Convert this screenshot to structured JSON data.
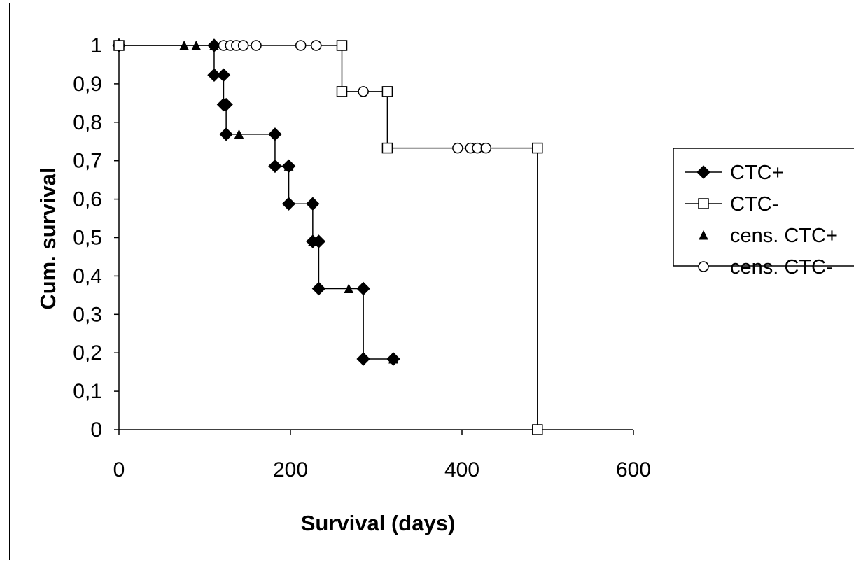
{
  "chart_data": {
    "type": "line",
    "title": "",
    "xlabel": "Survival (days)",
    "ylabel": "Cum. survival",
    "xlim": [
      0,
      600
    ],
    "ylim": [
      0,
      1
    ],
    "x_ticks": [
      0,
      200,
      400,
      600
    ],
    "x_tick_labels": [
      "0",
      "200",
      "400",
      "600"
    ],
    "y_ticks": [
      0,
      0.1,
      0.2,
      0.3,
      0.4,
      0.5,
      0.6,
      0.7,
      0.8,
      0.9,
      1
    ],
    "y_tick_labels": [
      "0",
      "0,1",
      "0,2",
      "0,3",
      "0,4",
      "0,5",
      "0,6",
      "0,7",
      "0,8",
      "0,9",
      "1"
    ],
    "grid": false,
    "legend_position": "right",
    "series": [
      {
        "name": "CTC+",
        "color": "#000000",
        "marker": "diamond",
        "step_points": [
          [
            0,
            1
          ],
          [
            111,
            1
          ],
          [
            111,
            0.923
          ],
          [
            122,
            0.923
          ],
          [
            122,
            0.846
          ],
          [
            125,
            0.846
          ],
          [
            125,
            0.769
          ],
          [
            182,
            0.769
          ],
          [
            182,
            0.686
          ],
          [
            198,
            0.686
          ],
          [
            198,
            0.588
          ],
          [
            226,
            0.588
          ],
          [
            226,
            0.49
          ],
          [
            233,
            0.49
          ],
          [
            233,
            0.367
          ],
          [
            285,
            0.367
          ],
          [
            285,
            0.184
          ],
          [
            320,
            0.184
          ]
        ],
        "event_points": [
          [
            0,
            1
          ],
          [
            111,
            1
          ],
          [
            111,
            0.923
          ],
          [
            122,
            0.923
          ],
          [
            122,
            0.846
          ],
          [
            125,
            0.846
          ],
          [
            125,
            0.769
          ],
          [
            182,
            0.769
          ],
          [
            182,
            0.686
          ],
          [
            198,
            0.686
          ],
          [
            198,
            0.588
          ],
          [
            226,
            0.588
          ],
          [
            226,
            0.49
          ],
          [
            233,
            0.49
          ],
          [
            233,
            0.367
          ],
          [
            285,
            0.367
          ],
          [
            285,
            0.184
          ],
          [
            320,
            0.184
          ]
        ]
      },
      {
        "name": "CTC-",
        "color": "#000000",
        "marker": "square",
        "step_points": [
          [
            0,
            1
          ],
          [
            260,
            1
          ],
          [
            260,
            0.88
          ],
          [
            313,
            0.88
          ],
          [
            313,
            0.733
          ],
          [
            488,
            0.733
          ],
          [
            488,
            0
          ]
        ],
        "event_points": [
          [
            0,
            1
          ],
          [
            260,
            1
          ],
          [
            260,
            0.88
          ],
          [
            313,
            0.88
          ],
          [
            313,
            0.733
          ],
          [
            488,
            0.733
          ],
          [
            488,
            0
          ]
        ]
      },
      {
        "name": "cens. CTC+",
        "color": "#000000",
        "marker": "triangle",
        "points": [
          [
            76,
            1
          ],
          [
            90,
            1
          ],
          [
            111,
            1
          ],
          [
            140,
            0.769
          ],
          [
            198,
            0.686
          ],
          [
            226,
            0.49
          ],
          [
            268,
            0.367
          ],
          [
            320,
            0.184
          ]
        ]
      },
      {
        "name": "cens. CTC-",
        "color": "#000000",
        "marker": "circle",
        "points": [
          [
            122,
            1
          ],
          [
            130,
            1
          ],
          [
            137,
            1
          ],
          [
            145,
            1
          ],
          [
            160,
            1
          ],
          [
            212,
            1
          ],
          [
            230,
            1
          ],
          [
            285,
            0.88
          ],
          [
            395,
            0.733
          ],
          [
            410,
            0.733
          ],
          [
            418,
            0.733
          ],
          [
            428,
            0.733
          ]
        ]
      }
    ]
  }
}
